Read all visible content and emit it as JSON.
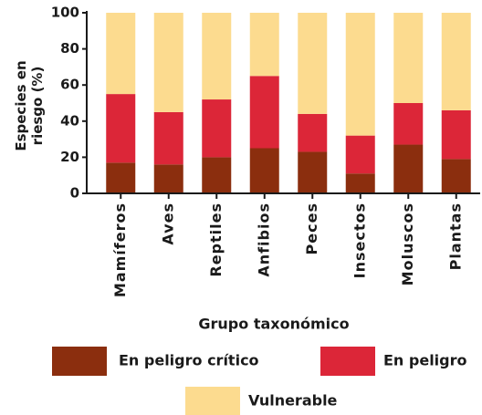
{
  "chart_data": {
    "type": "stacked_bar",
    "ylabel": "Especies en riesgo (%)",
    "xlabel": "Grupo taxonómico",
    "categories": [
      "Mamíferos",
      "Aves",
      "Reptiles",
      "Anfibios",
      "Peces",
      "Insectos",
      "Moluscos",
      "Plantas"
    ],
    "series": [
      {
        "name": "En peligro crítico",
        "color": "#8b2e0e",
        "values": [
          17,
          16,
          20,
          25,
          23,
          11,
          27,
          19
        ]
      },
      {
        "name": "En peligro",
        "color": "#dc2638",
        "values": [
          38,
          29,
          32,
          40,
          21,
          21,
          23,
          27
        ]
      },
      {
        "name": "Vulnerable",
        "color": "#fcdb8f",
        "values": [
          45,
          55,
          48,
          35,
          56,
          68,
          50,
          54
        ]
      }
    ],
    "ylim": [
      0,
      100
    ],
    "yticks": [
      0,
      20,
      40,
      60,
      80,
      100
    ]
  }
}
